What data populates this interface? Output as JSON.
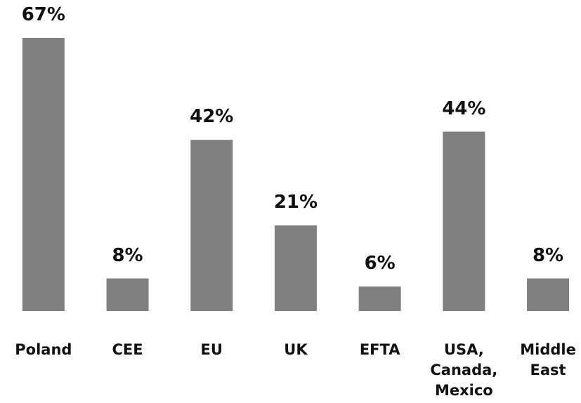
{
  "chart_data": {
    "type": "bar",
    "categories": [
      "Poland",
      "CEE",
      "EU",
      "UK",
      "EFTA",
      "USA, Canada, Mexico",
      "Middle East"
    ],
    "values": [
      67,
      8,
      42,
      21,
      6,
      44,
      8
    ],
    "value_labels": [
      "67%",
      "8%",
      "42%",
      "21%",
      "6%",
      "44%",
      "8%"
    ],
    "color": "#808080"
  }
}
